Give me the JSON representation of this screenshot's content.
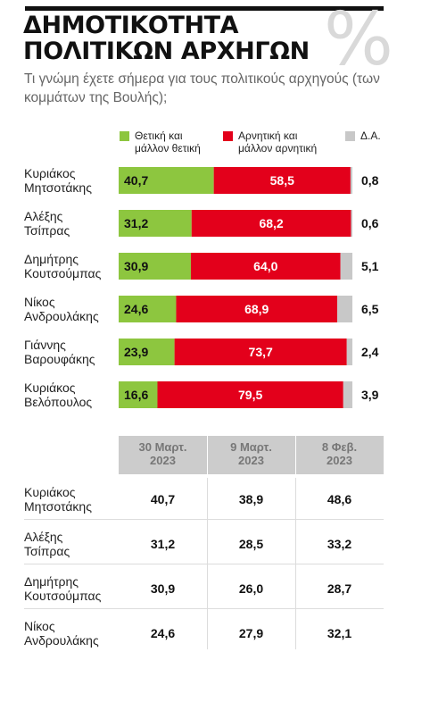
{
  "header": {
    "title_line1": "ΔΗΜΟΤΙΚΟΤΗΤΑ",
    "title_line2": "ΠΟΛΙΤΙΚΩΝ ΑΡΧΗΓΩΝ",
    "percent_glyph": "%",
    "subtitle": "Τι γνώμη έχετε σήμερα για τους πολιτικούς αρχηγούς (των κομμάτων της Βουλής);"
  },
  "colors": {
    "positive": "#8dc63f",
    "negative": "#e3001b",
    "dk": "#c8c8c8"
  },
  "chart_data": {
    "type": "bar",
    "orientation": "horizontal",
    "stacked": true,
    "categories": [
      [
        "Κυριάκος",
        "Μητσοτάκης"
      ],
      [
        "Αλέξης",
        "Τσίπρας"
      ],
      [
        "Δημήτρης",
        "Κουτσούμπας"
      ],
      [
        "Νίκος",
        "Ανδρουλάκης"
      ],
      [
        "Γιάννης",
        "Βαρουφάκης"
      ],
      [
        "Κυριάκος",
        "Βελόπουλος"
      ]
    ],
    "series": [
      {
        "name": "Θετική και μάλλον θετική",
        "legend_lines": [
          "Θετική και",
          "μάλλον θετική"
        ],
        "values": [
          40.7,
          31.2,
          30.9,
          24.6,
          23.9,
          16.6
        ],
        "labels": [
          "40,7",
          "31,2",
          "30,9",
          "24,6",
          "23,9",
          "16,6"
        ]
      },
      {
        "name": "Αρνητική και μάλλον αρνητική",
        "legend_lines": [
          "Αρνητική και",
          "μάλλον αρνητική"
        ],
        "values": [
          58.5,
          68.2,
          64.0,
          68.9,
          73.7,
          79.5
        ],
        "labels": [
          "58,5",
          "68,2",
          "64,0",
          "68,9",
          "73,7",
          "79,5"
        ]
      },
      {
        "name": "Δ.Α.",
        "legend_lines": [
          "Δ.Α."
        ],
        "values": [
          0.8,
          0.6,
          5.1,
          6.5,
          2.4,
          3.9
        ],
        "labels": [
          "0,8",
          "0,6",
          "5,1",
          "6,5",
          "2,4",
          "3,9"
        ]
      }
    ],
    "xlim": [
      0,
      100
    ],
    "legend": "top"
  },
  "table": {
    "columns": [
      [
        "30 Μαρτ.",
        "2023"
      ],
      [
        "9 Μαρτ.",
        "2023"
      ],
      [
        "8 Φεβ.",
        "2023"
      ]
    ],
    "rows": [
      {
        "name": [
          "Κυριάκος",
          "Μητσοτάκης"
        ],
        "values": [
          "40,7",
          "38,9",
          "48,6"
        ]
      },
      {
        "name": [
          "Αλέξης",
          "Τσίπρας"
        ],
        "values": [
          "31,2",
          "28,5",
          "33,2"
        ]
      },
      {
        "name": [
          "Δημήτρης",
          "Κουτσούμπας"
        ],
        "values": [
          "30,9",
          "26,0",
          "28,7"
        ]
      },
      {
        "name": [
          "Νίκος",
          "Ανδρουλάκης"
        ],
        "values": [
          "24,6",
          "27,9",
          "32,1"
        ]
      }
    ]
  }
}
